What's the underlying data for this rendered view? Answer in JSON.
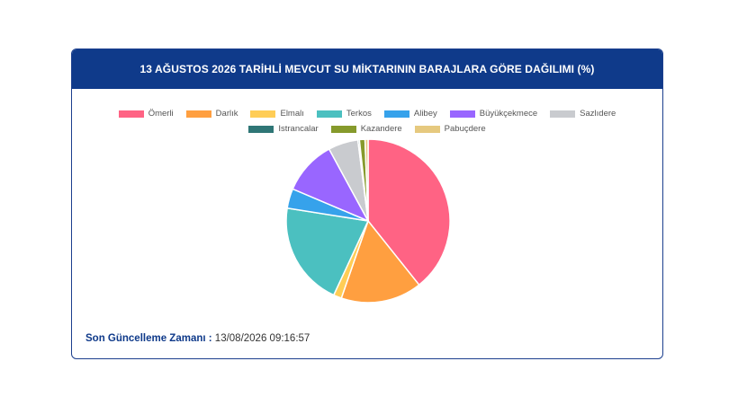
{
  "header": {
    "title": "13 AĞUSTOS 2026 TARİHLİ MEVCUT SU MİKTARININ BARAJLARA GÖRE DAĞILIMI (%)"
  },
  "footer": {
    "label": "Son Güncelleme Zamanı :",
    "value": "13/08/2026 09:16:57"
  },
  "colors": {
    "header_bg": "#0f3a8a",
    "border": "#1c3f8e"
  },
  "chart_data": {
    "type": "pie",
    "title": "13 AĞUSTOS 2026 TARİHLİ MEVCUT SU MİKTARININ BARAJLARA GÖRE DAĞILIMI (%)",
    "legend_position": "top",
    "slices": [
      {
        "label": "Ömerli",
        "value": 39.3,
        "color": "#ff6384"
      },
      {
        "label": "Darlık",
        "value": 16.0,
        "color": "#ff9f40"
      },
      {
        "label": "Elmalı",
        "value": 1.6,
        "color": "#ffcd56"
      },
      {
        "label": "Terkos",
        "value": 20.6,
        "color": "#4bc0c0"
      },
      {
        "label": "Alibey",
        "value": 3.9,
        "color": "#36a2eb"
      },
      {
        "label": "Büyükçekmece",
        "value": 10.7,
        "color": "#9966ff"
      },
      {
        "label": "Sazlıdere",
        "value": 5.9,
        "color": "#c9cbcf"
      },
      {
        "label": "Istrancalar",
        "value": 0.3,
        "color": "#2f7676"
      },
      {
        "label": "Kazandere",
        "value": 1.1,
        "color": "#869a2c"
      },
      {
        "label": "Pabuçdere",
        "value": 0.6,
        "color": "#e6c97f"
      }
    ]
  }
}
